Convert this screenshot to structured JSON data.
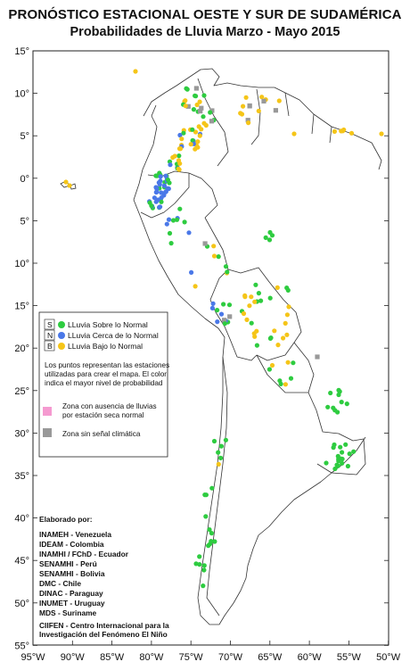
{
  "title": "PRONÓSTICO ESTACIONAL OESTE Y SUR DE SUDAMÉRICA",
  "subtitle": "Probabilidades de Lluvia Marzo - Mayo 2015",
  "lat_ticks": [
    "15°",
    "10°",
    "5°",
    "0°",
    "5°",
    "10°",
    "15°",
    "20°",
    "25°",
    "30°",
    "35°",
    "40°",
    "45°",
    "50°",
    "55°"
  ],
  "lon_ticks": [
    "95°W",
    "90°W",
    "85°W",
    "80°W",
    "75°W",
    "70°W",
    "65°W",
    "60°W",
    "55°W",
    "50°W"
  ],
  "legend": {
    "categories": [
      {
        "letter": "S",
        "label": "LLuvia Sobre lo Normal",
        "color": "#2ecc40"
      },
      {
        "letter": "N",
        "label": "LLuvia Cerca de lo Normal",
        "color": "#4a78e8"
      },
      {
        "letter": "B",
        "label": "LLuvia Bajo lo Normal",
        "color": "#f5c518"
      }
    ],
    "note_lines": [
      "Los puntos representan las estaciones",
      "utilizadas para crear el mapa. El color",
      "indica el mayor nivel de probabilidad"
    ],
    "no_rain_lines": [
      "Zona con ausencia de lluvias",
      "por estación seca normal"
    ],
    "no_rain_color": "#f59ad0",
    "no_signal_label": "Zona sin señal climática",
    "no_signal_color": "#999999"
  },
  "credits": {
    "heading": "Elaborado por:",
    "lines": [
      "INAMEH - Venezuela",
      "IDEAM - Colombia",
      "INAMHI / FChD - Ecuador",
      "SENAMHI - Perú",
      "SENAMHI - Bolivia",
      "DMC - Chile",
      "DINAC - Paraguay",
      "INUMET - Uruguay",
      "MDS - Suriname"
    ],
    "ciifen": [
      "CIIFEN - Centro Internacional para la",
      "Investigación del Fenómeno El Niño"
    ]
  }
}
